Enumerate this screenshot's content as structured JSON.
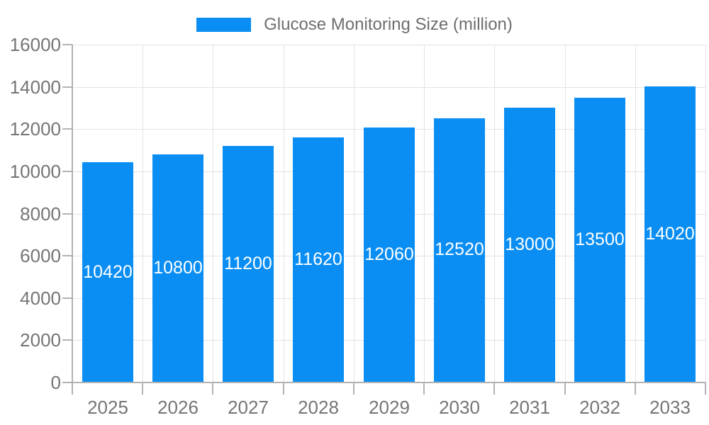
{
  "chart_data": {
    "type": "bar",
    "title": "Glucose Monitoring Size (million)",
    "legend": {
      "label": "Glucose Monitoring Size (million)",
      "position": "top-center"
    },
    "categories": [
      "2025",
      "2026",
      "2027",
      "2028",
      "2029",
      "2030",
      "2031",
      "2032",
      "2033"
    ],
    "series": [
      {
        "name": "Glucose Monitoring Size (million)",
        "values": [
          10420,
          10800,
          11200,
          11620,
          12060,
          12520,
          13000,
          13500,
          14020
        ]
      }
    ],
    "value_labels": [
      "10420",
      "10800",
      "11200",
      "11620",
      "12060",
      "12520",
      "13000",
      "13500",
      "14020"
    ],
    "xlabel": "",
    "ylabel": "",
    "ylim": [
      0,
      16000
    ],
    "ytick_step": 2000,
    "ytick_labels": [
      "0",
      "2000",
      "4000",
      "6000",
      "8000",
      "10000",
      "12000",
      "14000",
      "16000"
    ],
    "grid": true,
    "legend_position": "top",
    "colors": {
      "bar": "#0a8ef4",
      "grid": "#e3e3e3",
      "axis": "#b1b1b1",
      "tick": "#b3b3b3",
      "tick_text": "#757575",
      "legend_text": "#6e6e6e",
      "value_text": "#ffffff"
    }
  }
}
